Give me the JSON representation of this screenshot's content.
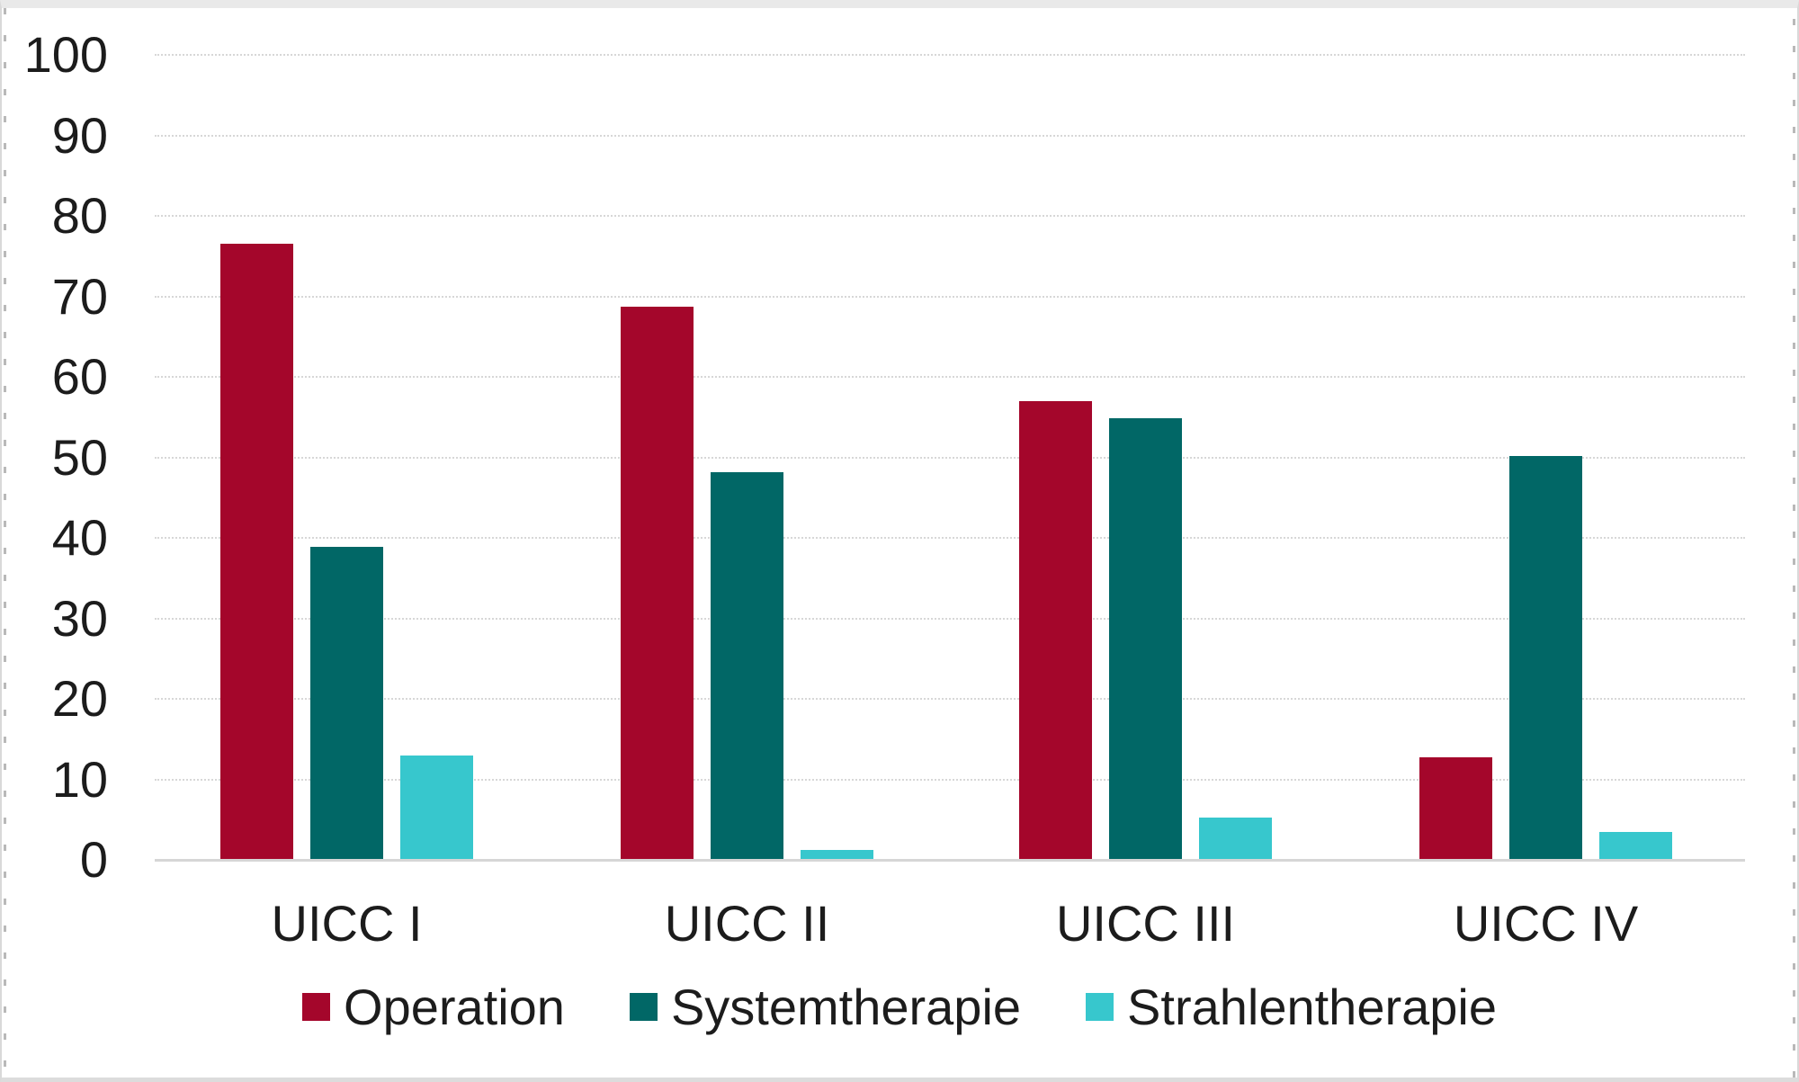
{
  "chart_data": {
    "type": "bar",
    "title": "",
    "xlabel": "",
    "ylabel": "",
    "categories": [
      "UICC I",
      "UICC II",
      "UICC III",
      "UICC IV"
    ],
    "series": [
      {
        "name": "Operation",
        "color": "#a4062b",
        "values": [
          76.5,
          68.7,
          57.0,
          12.7
        ]
      },
      {
        "name": "Systemtherapie",
        "color": "#016766",
        "values": [
          38.9,
          48.2,
          54.9,
          50.2
        ]
      },
      {
        "name": "Strahlentherapie",
        "color": "#37c7cd",
        "values": [
          13.0,
          1.2,
          5.3,
          3.5
        ]
      }
    ],
    "ylim": [
      0,
      100
    ],
    "yticks": [
      0,
      10,
      20,
      30,
      40,
      50,
      60,
      70,
      80,
      90,
      100
    ],
    "grid": "horizontal dotted gridlines",
    "legend_position": "bottom",
    "colors": {
      "gridline": "#d7d7d7",
      "axis_line": "#d6d6d6",
      "text": "#1c1c1c",
      "background": "#ffffff"
    }
  }
}
